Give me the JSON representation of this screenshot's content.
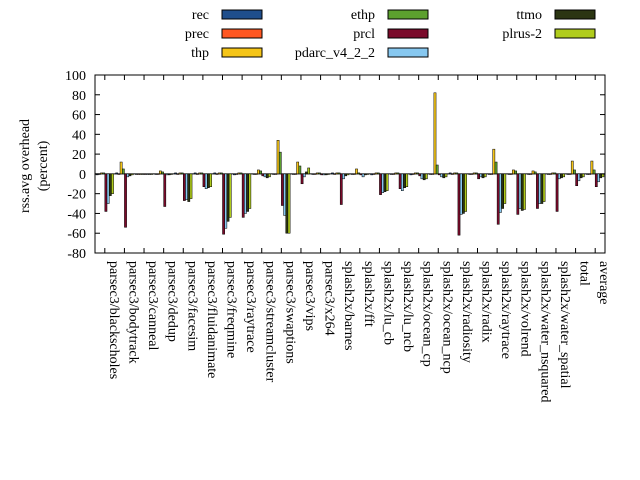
{
  "chart_data": {
    "type": "bar",
    "ylabel": "rss.avg overhead (percent)",
    "ylabel_lines": [
      "rss.avg overhead",
      "(percent)"
    ],
    "ylim": [
      -80,
      100
    ],
    "yticks": [
      -80,
      -60,
      -40,
      -20,
      0,
      20,
      40,
      60,
      80,
      100
    ],
    "legend_position": "top",
    "categories": [
      "parsec3/blackscholes",
      "parsec3/bodytrack",
      "parsec3/canneal",
      "parsec3/dedup",
      "parsec3/facesim",
      "parsec3/fluidanimate",
      "parsec3/freqmine",
      "parsec3/raytrace",
      "parsec3/streamcluster",
      "parsec3/swaptions",
      "parsec3/vips",
      "parsec3/x264",
      "splash2x/barnes",
      "splash2x/fft",
      "splash2x/lu_cb",
      "splash2x/lu_ncb",
      "splash2x/ocean_cp",
      "splash2x/ocean_ncp",
      "splash2x/radiosity",
      "splash2x/radix",
      "splash2x/raytrace",
      "splash2x/volrend",
      "splash2x/water_nsquared",
      "splash2x/water_spatial",
      "total",
      "average"
    ],
    "series": [
      {
        "name": "rec",
        "color": "#1f4e8c",
        "values": [
          -1,
          1,
          0,
          0,
          1,
          1,
          1,
          -1,
          0,
          0,
          0,
          0,
          1,
          0,
          -1,
          0,
          -1,
          0,
          1,
          0,
          0,
          0,
          0,
          0,
          0,
          0
        ]
      },
      {
        "name": "prec",
        "color": "#ff5722",
        "values": [
          0,
          0,
          0,
          0,
          0,
          0,
          0,
          0,
          0,
          0,
          0,
          0,
          0,
          0,
          0,
          0,
          0,
          0,
          0,
          0,
          0,
          0,
          0,
          0,
          0,
          0
        ]
      },
      {
        "name": "thp",
        "color": "#f5c518",
        "values": [
          1,
          12,
          0,
          3,
          1,
          1,
          1,
          1,
          4,
          34,
          12,
          1,
          1,
          5,
          1,
          1,
          1,
          82,
          1,
          1,
          25,
          4,
          3,
          1,
          13,
          13
        ]
      },
      {
        "name": "ethp",
        "color": "#5ca02e",
        "values": [
          1,
          5,
          0,
          2,
          1,
          1,
          1,
          1,
          3,
          22,
          8,
          1,
          1,
          1,
          1,
          1,
          1,
          9,
          1,
          1,
          12,
          3,
          2,
          1,
          4,
          4
        ]
      },
      {
        "name": "prcl",
        "color": "#7a0a2a",
        "values": [
          -38,
          -54,
          0,
          -33,
          -27,
          -13,
          -61,
          -44,
          -2,
          -32,
          -10,
          -1,
          -31,
          -1,
          -21,
          -15,
          -2,
          -1,
          -62,
          -5,
          -51,
          -41,
          -35,
          -38,
          -12,
          -13
        ]
      },
      {
        "name": "pdarc_v4_2_2",
        "color": "#87c8f0",
        "values": [
          -30,
          -3,
          0,
          -1,
          -26,
          -15,
          -55,
          -40,
          -3,
          -42,
          -3,
          -1,
          -5,
          -3,
          -19,
          -17,
          -5,
          -3,
          -41,
          -3,
          -39,
          -35,
          -30,
          -5,
          -7,
          -8
        ]
      },
      {
        "name": "ttmo",
        "color": "#2b3512",
        "values": [
          -22,
          -2,
          0,
          -1,
          -28,
          -14,
          -48,
          -38,
          -4,
          -60,
          2,
          -1,
          -2,
          -1,
          -18,
          -14,
          -6,
          -4,
          -40,
          -4,
          -35,
          -37,
          -30,
          -4,
          -4,
          -4
        ]
      },
      {
        "name": "plrus-2",
        "color": "#b0cc1c",
        "values": [
          -20,
          -1,
          0,
          0,
          -25,
          -13,
          -44,
          -35,
          -3,
          -60,
          6,
          0,
          -1,
          0,
          -17,
          -13,
          -5,
          -3,
          -38,
          -3,
          -30,
          -36,
          -28,
          -3,
          -3,
          -3
        ]
      }
    ]
  }
}
